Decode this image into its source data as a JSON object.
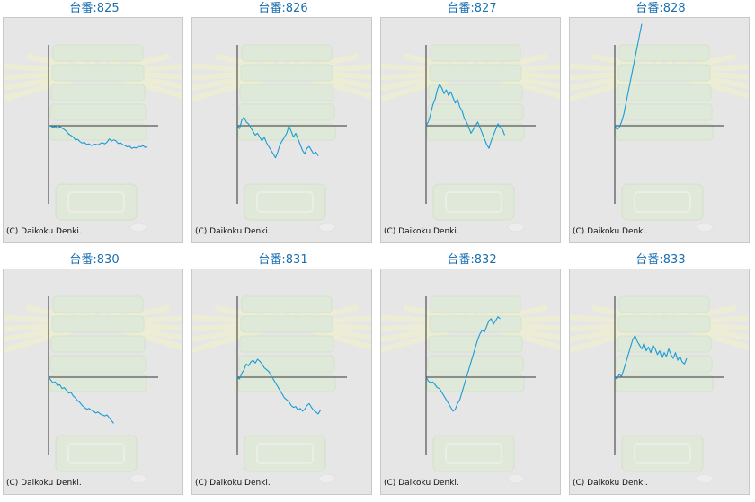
{
  "copyright_text": "(C) Daikoku Denki.",
  "colors": {
    "line": "#1a9ad6",
    "axis": "#333333",
    "title": "#1a6fb0",
    "panel": "#e6e6e6"
  },
  "chart_data": [
    {
      "type": "line",
      "title": "台番:825",
      "values": [
        0,
        -2,
        -8,
        -4,
        -14,
        -5,
        -12,
        -20,
        -30,
        -45,
        -52,
        -60,
        -75,
        -72,
        -85,
        -92,
        -88,
        -100,
        -96,
        -105,
        -100,
        -98,
        -102,
        -95,
        -90,
        -96,
        -88,
        -70,
        -82,
        -75,
        -80,
        -95,
        -90,
        -100,
        -105,
        -112,
        -108,
        -120,
        -115,
        -118,
        -110,
        -112,
        -105,
        -115,
        -110
      ]
    },
    {
      "type": "line",
      "title": "台番:826",
      "values": [
        0,
        -15,
        30,
        45,
        20,
        10,
        -10,
        -30,
        -50,
        -40,
        -60,
        -80,
        -60,
        -90,
        -110,
        -130,
        -150,
        -170,
        -140,
        -100,
        -80,
        -60,
        -40,
        0,
        -30,
        -60,
        -40,
        -70,
        -100,
        -130,
        -150,
        -120,
        -110,
        -130,
        -150,
        -140,
        -160
      ]
    },
    {
      "type": "line",
      "title": "台番:827",
      "values": [
        0,
        20,
        60,
        110,
        140,
        190,
        220,
        200,
        170,
        190,
        160,
        180,
        150,
        120,
        140,
        100,
        80,
        40,
        20,
        -10,
        -40,
        -20,
        0,
        20,
        -10,
        -40,
        -70,
        -100,
        -120,
        -80,
        -50,
        -20,
        10,
        -10,
        -20,
        -50
      ]
    },
    {
      "type": "line",
      "title": "台番:828",
      "values": [
        0,
        -20,
        -10,
        20,
        60,
        120,
        180,
        240,
        300,
        360,
        420,
        480,
        540
      ]
    },
    {
      "type": "line",
      "title": "台番:830",
      "values": [
        0,
        -15,
        -30,
        -25,
        -45,
        -40,
        -60,
        -55,
        -70,
        -85,
        -80,
        -100,
        -110,
        -125,
        -135,
        -150,
        -160,
        -170,
        -165,
        -175,
        -180,
        -190,
        -185,
        -195,
        -200,
        -205,
        -200,
        -215,
        -230,
        -245
      ]
    },
    {
      "type": "line",
      "title": "台番:831",
      "values": [
        0,
        -10,
        20,
        40,
        70,
        60,
        80,
        90,
        75,
        95,
        85,
        70,
        50,
        40,
        30,
        10,
        -10,
        -30,
        -50,
        -70,
        -90,
        -110,
        -120,
        -130,
        -150,
        -160,
        -155,
        -175,
        -165,
        -180,
        -170,
        -150,
        -140,
        -160,
        -175,
        -185,
        -195,
        -175
      ]
    },
    {
      "type": "line",
      "title": "台番:832",
      "values": [
        0,
        -20,
        -30,
        -25,
        -40,
        -55,
        -60,
        -80,
        -100,
        -120,
        -140,
        -160,
        -180,
        -170,
        -140,
        -120,
        -80,
        -40,
        0,
        40,
        80,
        120,
        160,
        200,
        230,
        250,
        240,
        270,
        300,
        310,
        280,
        300,
        320,
        310
      ]
    },
    {
      "type": "line",
      "title": "台番:833",
      "values": [
        0,
        -10,
        15,
        5,
        40,
        80,
        120,
        160,
        200,
        220,
        190,
        170,
        150,
        180,
        140,
        160,
        130,
        170,
        150,
        120,
        140,
        100,
        130,
        110,
        150,
        120,
        100,
        130,
        90,
        110,
        80,
        70,
        100
      ]
    }
  ]
}
